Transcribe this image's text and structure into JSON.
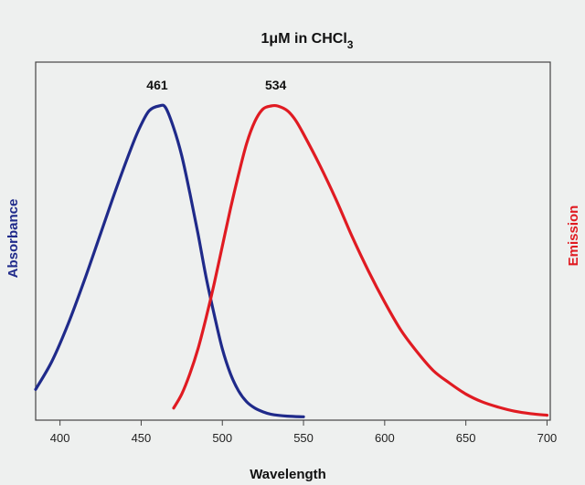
{
  "chart_data": {
    "type": "line",
    "title": {
      "main": "1μM in CHCl",
      "subscript": "3"
    },
    "xlabel": "Wavelength",
    "ylabel_left": "Absorbance",
    "ylabel_right": "Emission",
    "xlim": [
      385,
      702
    ],
    "ylim": [
      0,
      1
    ],
    "xticks": [
      400,
      450,
      500,
      550,
      600,
      650,
      700
    ],
    "y_ticks_shown": false,
    "grid": false,
    "annotations": [
      {
        "text": "461",
        "x": 461,
        "y": 1.0
      },
      {
        "text": "534",
        "x": 534,
        "y": 1.0
      }
    ],
    "series": [
      {
        "id": "absorbance",
        "color": "#1f2a8a",
        "x": [
          385,
          395,
          405,
          415,
          425,
          435,
          445,
          450,
          455,
          461,
          465,
          470,
          475,
          480,
          485,
          490,
          495,
          500,
          505,
          510,
          515,
          520,
          525,
          530,
          540,
          550
        ],
        "y": [
          0.09,
          0.18,
          0.3,
          0.44,
          0.59,
          0.74,
          0.88,
          0.94,
          0.985,
          1.0,
          0.995,
          0.93,
          0.84,
          0.72,
          0.59,
          0.45,
          0.33,
          0.22,
          0.14,
          0.085,
          0.05,
          0.03,
          0.018,
          0.01,
          0.004,
          0.002
        ]
      },
      {
        "id": "emission",
        "color": "#e01b22",
        "x": [
          470,
          475,
          480,
          485,
          490,
          495,
          500,
          505,
          510,
          515,
          520,
          525,
          530,
          534,
          540,
          545,
          550,
          560,
          570,
          580,
          590,
          600,
          610,
          620,
          630,
          640,
          650,
          660,
          670,
          680,
          690,
          700
        ],
        "y": [
          0.03,
          0.075,
          0.14,
          0.22,
          0.32,
          0.43,
          0.55,
          0.67,
          0.78,
          0.88,
          0.95,
          0.99,
          1.0,
          1.0,
          0.985,
          0.955,
          0.91,
          0.81,
          0.7,
          0.58,
          0.47,
          0.37,
          0.28,
          0.21,
          0.15,
          0.11,
          0.075,
          0.05,
          0.033,
          0.02,
          0.012,
          0.007
        ]
      }
    ]
  }
}
